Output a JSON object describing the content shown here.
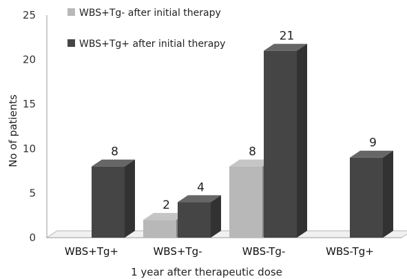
{
  "chart_data": {
    "type": "bar",
    "style": "3d-clustered-column",
    "categories": [
      "WBS+Tg+",
      "WBS+Tg-",
      "WBS-Tg-",
      "WBS-Tg+"
    ],
    "series": [
      {
        "name": "WBS+Tg- after initial therapy",
        "color": "#b8b8b8",
        "values": [
          null,
          2,
          8,
          null
        ]
      },
      {
        "name": "WBS+Tg+ after initial therapy",
        "color": "#454545",
        "values": [
          8,
          4,
          21,
          9
        ]
      }
    ],
    "title": "",
    "xlabel": "1 year after therapeutic dose",
    "ylabel": "No of patients",
    "ylim": [
      0,
      25
    ],
    "yticks": [
      0,
      5,
      10,
      15,
      20,
      25
    ],
    "grid": false,
    "legend": "top-left",
    "data_labels": true
  }
}
